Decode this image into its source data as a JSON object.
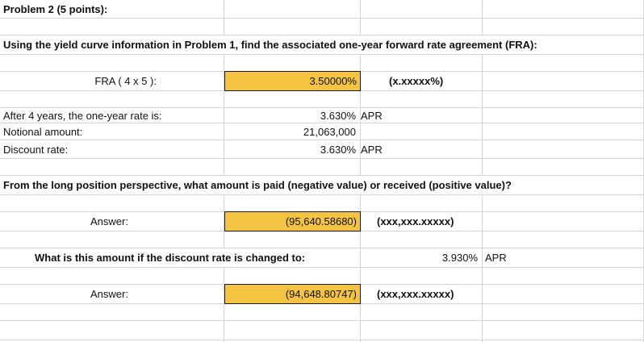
{
  "problem_title": "Problem 2 (5 points):",
  "instruction": "Using the yield curve information in Problem 1, find the associated one-year forward rate agreement (FRA):",
  "fra": {
    "label": "FRA ( 4 x 5 ):",
    "value": "3.50000%",
    "format": "(x.xxxxx%)"
  },
  "inputs": {
    "one_year_rate_label": "After 4 years, the one-year rate is:",
    "one_year_rate_value": "3.630%",
    "one_year_rate_unit": "APR",
    "notional_label": "Notional amount:",
    "notional_value": "21,063,000",
    "discount_label": "Discount rate:",
    "discount_value": "3.630%",
    "discount_unit": "APR"
  },
  "question": "From the long position perspective, what amount is paid (negative value) or received (positive value)?",
  "answer1": {
    "label": "Answer:",
    "value": "(95,640.58680)",
    "format": "(xxx,xxx.xxxxx)"
  },
  "followup": {
    "question": "What is this amount if the discount rate is changed to:",
    "rate": "3.930%",
    "unit": "APR"
  },
  "answer2": {
    "label": "Answer:",
    "value": "(94,648.80747)",
    "format": "(xxx,xxx.xxxxx)"
  }
}
